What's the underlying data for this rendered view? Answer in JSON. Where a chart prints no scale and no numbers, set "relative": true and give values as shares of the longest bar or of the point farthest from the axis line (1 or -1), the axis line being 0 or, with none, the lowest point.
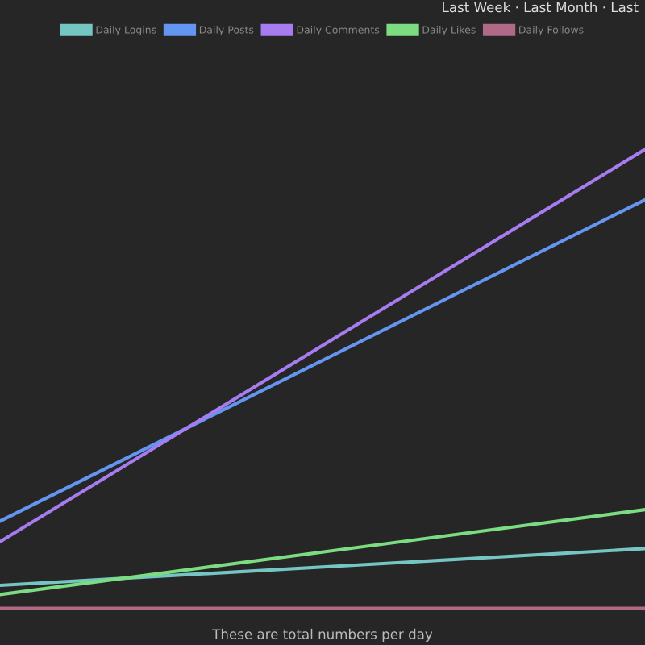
{
  "chart_data": {
    "type": "line",
    "relative": true,
    "categories": [
      null,
      null
    ],
    "series": [
      {
        "name": "Daily Logins",
        "color": "#75c6c3",
        "values": [
          0.05,
          0.13
        ]
      },
      {
        "name": "Daily Posts",
        "color": "#6495f0",
        "values": [
          0.19,
          0.89
        ]
      },
      {
        "name": "Daily Comments",
        "color": "#a67cf0",
        "values": [
          0.145,
          1.0
        ]
      },
      {
        "name": "Daily Likes",
        "color": "#7bdc82",
        "values": [
          0.03,
          0.215
        ]
      },
      {
        "name": "Daily Follows",
        "color": "#b06a88",
        "values": [
          0,
          0
        ]
      }
    ],
    "legend": "top",
    "marker": "none",
    "line_style": "solid",
    "annotations": [
      "Last Week · Last Month · Last",
      "These are total numbers per day"
    ]
  }
}
